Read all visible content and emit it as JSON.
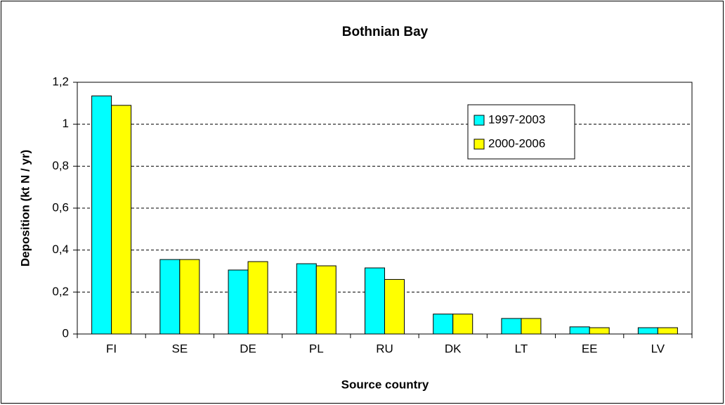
{
  "chart_data": {
    "type": "bar",
    "title": "Bothnian Bay",
    "x_label": "Source country",
    "y_label": "Deposition (kt N / yr)",
    "categories": [
      "FI",
      "SE",
      "DE",
      "PL",
      "RU",
      "DK",
      "LT",
      "EE",
      "LV"
    ],
    "series": [
      {
        "name": "1997-2003",
        "color": "#00ffff",
        "values": [
          1.135,
          0.355,
          0.305,
          0.335,
          0.315,
          0.095,
          0.074,
          0.034,
          0.03
        ]
      },
      {
        "name": "2000-2006",
        "color": "#ffff00",
        "values": [
          1.09,
          0.355,
          0.345,
          0.325,
          0.26,
          0.095,
          0.074,
          0.03,
          0.03
        ]
      }
    ],
    "ylim": [
      0,
      1.2
    ],
    "yticks": [
      0,
      {
        "value": 0.2,
        "label": "0,2"
      },
      {
        "value": 0.4,
        "label": "0,4"
      },
      {
        "value": 0.6,
        "label": "0,6"
      },
      {
        "value": 0.8,
        "label": "0,8"
      },
      1,
      {
        "value": 1.2,
        "label": "1,2"
      }
    ],
    "grid": true,
    "legend": "upper right"
  }
}
